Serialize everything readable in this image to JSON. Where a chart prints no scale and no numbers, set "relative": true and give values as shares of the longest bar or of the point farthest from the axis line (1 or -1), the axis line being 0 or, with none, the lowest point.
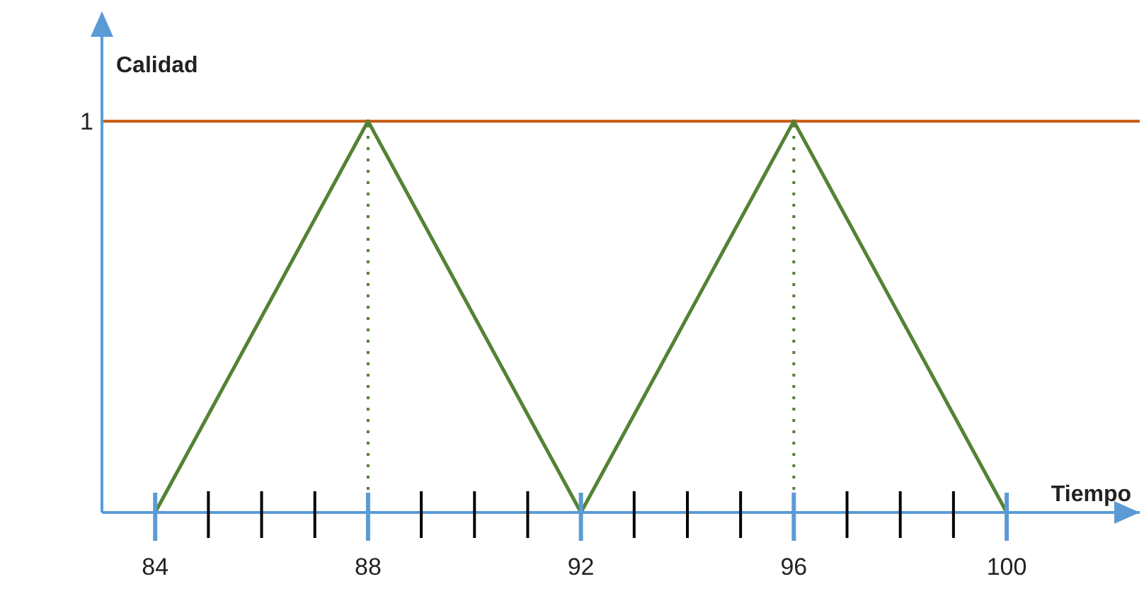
{
  "chart_data": {
    "type": "line",
    "xlabel": "Tiempo",
    "ylabel": "Calidad",
    "x": [
      84,
      88,
      92,
      96,
      100
    ],
    "series": [
      {
        "color": "#548235",
        "values": [
          0,
          1,
          0,
          1,
          0
        ]
      }
    ],
    "xlim": [
      83,
      102.5
    ],
    "xticks": [
      84,
      {
        "value": 85,
        "label": null
      },
      {
        "value": 86,
        "label": null
      },
      {
        "value": 87,
        "label": null
      },
      88,
      {
        "value": 89,
        "label": null
      },
      {
        "value": 90,
        "label": null
      },
      {
        "value": 91,
        "label": null
      },
      92,
      {
        "value": 93,
        "label": null
      },
      {
        "value": 94,
        "label": null
      },
      {
        "value": 95,
        "label": null
      },
      96,
      {
        "value": 97,
        "label": null
      },
      {
        "value": 98,
        "label": null
      },
      {
        "value": 99,
        "label": null
      },
      100
    ],
    "relative": true,
    "annotations": [
      "1"
    ],
    "ref_lines": [
      {
        "axis": "y",
        "value": 1,
        "color": "#c55a11",
        "line_style": "solid"
      },
      {
        "axis": "x",
        "value": 88,
        "color": "#548235",
        "line_style": "dotted"
      },
      {
        "axis": "x",
        "value": 96,
        "color": "#548235",
        "line_style": "dotted"
      }
    ],
    "grid": false,
    "legend": false,
    "marker": "none",
    "line_style": "solid"
  }
}
